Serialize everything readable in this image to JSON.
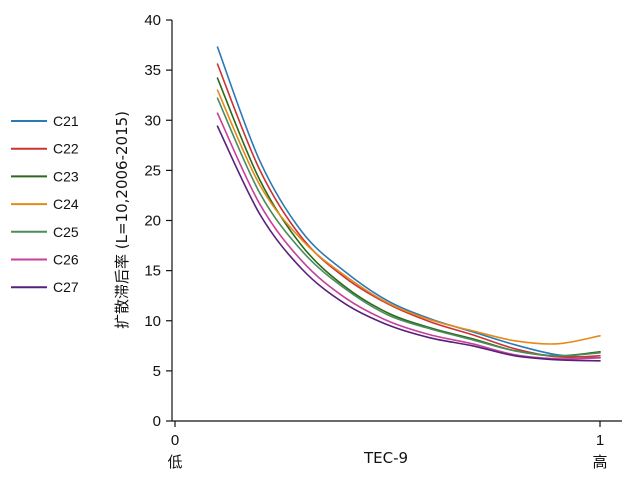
{
  "chart_data": {
    "type": "line",
    "title": "",
    "xlabel": "TEC-9",
    "ylabel": "扩散滞后率 (L=10,2006-2015)",
    "xlim": [
      0,
      1
    ],
    "ylim": [
      0,
      40
    ],
    "yticks": [
      "0",
      "5",
      "10",
      "15",
      "20",
      "25",
      "30",
      "35",
      "40"
    ],
    "xticks": [
      {
        "value": 0,
        "label": "0",
        "sublabel": "低"
      },
      {
        "value": 1,
        "label": "1",
        "sublabel": "高"
      }
    ],
    "legend_position": "left",
    "grid": false,
    "x": [
      0.1,
      0.2,
      0.3,
      0.4,
      0.5,
      0.6,
      0.7,
      0.8,
      0.9,
      1.0
    ],
    "series": [
      {
        "name": "C21",
        "color": "#2a7ab8",
        "values": [
          37.3,
          25.9,
          18.8,
          14.9,
          12.0,
          10.2,
          8.9,
          7.6,
          6.6,
          6.3
        ]
      },
      {
        "name": "C22",
        "color": "#cc3333",
        "values": [
          35.6,
          25.0,
          18.2,
          14.3,
          11.7,
          9.9,
          8.6,
          7.2,
          6.4,
          6.5
        ]
      },
      {
        "name": "C23",
        "color": "#2b6a1d",
        "values": [
          34.2,
          24.0,
          17.4,
          13.4,
          10.8,
          9.3,
          8.2,
          7.0,
          6.5,
          6.9
        ]
      },
      {
        "name": "C24",
        "color": "#e58a19",
        "values": [
          33.0,
          23.5,
          18.0,
          14.5,
          11.8,
          10.1,
          9.0,
          8.0,
          7.7,
          8.5
        ]
      },
      {
        "name": "C25",
        "color": "#4a8c5c",
        "values": [
          32.2,
          22.7,
          16.9,
          13.2,
          10.6,
          9.2,
          8.1,
          7.0,
          6.5,
          6.8
        ]
      },
      {
        "name": "C26",
        "color": "#c8409a",
        "values": [
          30.7,
          21.6,
          15.9,
          12.3,
          10.0,
          8.6,
          7.7,
          6.6,
          6.2,
          6.3
        ]
      },
      {
        "name": "C27",
        "color": "#57207a",
        "values": [
          29.4,
          20.6,
          15.1,
          11.7,
          9.6,
          8.3,
          7.5,
          6.5,
          6.1,
          6.0
        ]
      }
    ]
  }
}
